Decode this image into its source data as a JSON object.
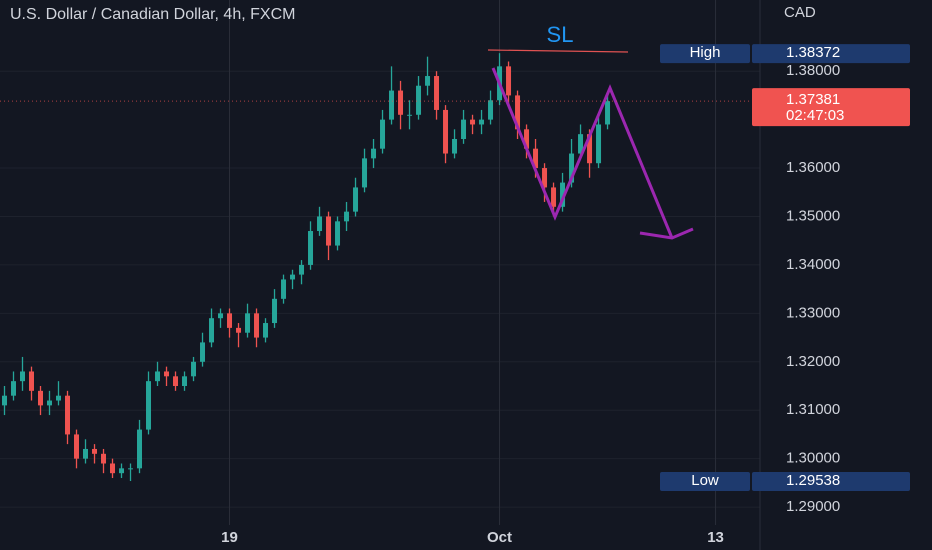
{
  "chart_data": {
    "type": "candlestick",
    "title": "U.S. Dollar / Canadian Dollar, 4h, FXCM",
    "y_axis_title": "CAD",
    "annotation": "SL",
    "up_color": "#26a69a",
    "down_color": "#ef5350",
    "grid": true,
    "ylim": [
      1.2863,
      1.3947
    ],
    "yticks": [
      {
        "value": 1.29,
        "label": "1.29000"
      },
      {
        "value": 1.3,
        "label": "1.30000"
      },
      {
        "value": 1.31,
        "label": "1.31000"
      },
      {
        "value": 1.32,
        "label": "1.32000"
      },
      {
        "value": 1.33,
        "label": "1.33000"
      },
      {
        "value": 1.34,
        "label": "1.34000"
      },
      {
        "value": 1.35,
        "label": "1.35000"
      },
      {
        "value": 1.36,
        "label": "1.36000"
      },
      {
        "value": 1.38,
        "label": "1.38000"
      }
    ],
    "xlim": [
      -0.5,
      83.94
    ],
    "xticks": [
      {
        "value": 25,
        "label": "19"
      },
      {
        "value": 55,
        "label": "Oct"
      },
      {
        "value": 79,
        "label": "13"
      }
    ],
    "high": {
      "label": "High",
      "value": 1.38372
    },
    "low": {
      "label": "Low",
      "value": 1.29538
    },
    "last_price": 1.37381,
    "countdown": "02:47:03",
    "ohlc": [
      [
        1.311,
        1.315,
        1.309,
        1.313
      ],
      [
        1.313,
        1.318,
        1.312,
        1.316
      ],
      [
        1.316,
        1.321,
        1.314,
        1.318
      ],
      [
        1.318,
        1.319,
        1.312,
        1.314
      ],
      [
        1.314,
        1.315,
        1.309,
        1.311
      ],
      [
        1.311,
        1.314,
        1.309,
        1.312
      ],
      [
        1.312,
        1.316,
        1.311,
        1.313
      ],
      [
        1.313,
        1.314,
        1.303,
        1.305
      ],
      [
        1.305,
        1.306,
        1.298,
        1.3
      ],
      [
        1.3,
        1.304,
        1.299,
        1.302
      ],
      [
        1.302,
        1.303,
        1.299,
        1.301
      ],
      [
        1.301,
        1.302,
        1.297,
        1.299
      ],
      [
        1.299,
        1.3,
        1.296,
        1.297
      ],
      [
        1.297,
        1.299,
        1.296,
        1.298
      ],
      [
        1.298,
        1.299,
        1.29538,
        1.298
      ],
      [
        1.298,
        1.308,
        1.297,
        1.306
      ],
      [
        1.306,
        1.318,
        1.305,
        1.316
      ],
      [
        1.316,
        1.32,
        1.315,
        1.318
      ],
      [
        1.318,
        1.319,
        1.315,
        1.317
      ],
      [
        1.317,
        1.318,
        1.314,
        1.315
      ],
      [
        1.315,
        1.318,
        1.314,
        1.317
      ],
      [
        1.317,
        1.321,
        1.316,
        1.32
      ],
      [
        1.32,
        1.326,
        1.319,
        1.324
      ],
      [
        1.324,
        1.331,
        1.323,
        1.329
      ],
      [
        1.329,
        1.331,
        1.327,
        1.33
      ],
      [
        1.33,
        1.331,
        1.325,
        1.327
      ],
      [
        1.327,
        1.328,
        1.323,
        1.326
      ],
      [
        1.326,
        1.332,
        1.325,
        1.33
      ],
      [
        1.33,
        1.331,
        1.323,
        1.325
      ],
      [
        1.325,
        1.329,
        1.324,
        1.328
      ],
      [
        1.328,
        1.335,
        1.327,
        1.333
      ],
      [
        1.333,
        1.338,
        1.332,
        1.337
      ],
      [
        1.337,
        1.339,
        1.335,
        1.338
      ],
      [
        1.338,
        1.341,
        1.336,
        1.34
      ],
      [
        1.34,
        1.349,
        1.339,
        1.347
      ],
      [
        1.347,
        1.352,
        1.346,
        1.35
      ],
      [
        1.35,
        1.351,
        1.341,
        1.344
      ],
      [
        1.344,
        1.35,
        1.343,
        1.349
      ],
      [
        1.349,
        1.353,
        1.347,
        1.351
      ],
      [
        1.351,
        1.358,
        1.35,
        1.356
      ],
      [
        1.356,
        1.364,
        1.355,
        1.362
      ],
      [
        1.362,
        1.366,
        1.36,
        1.364
      ],
      [
        1.364,
        1.372,
        1.363,
        1.37
      ],
      [
        1.37,
        1.381,
        1.369,
        1.376
      ],
      [
        1.376,
        1.378,
        1.368,
        1.371
      ],
      [
        1.371,
        1.374,
        1.368,
        1.371
      ],
      [
        1.371,
        1.379,
        1.37,
        1.377
      ],
      [
        1.377,
        1.383,
        1.375,
        1.379
      ],
      [
        1.379,
        1.38,
        1.37,
        1.372
      ],
      [
        1.372,
        1.373,
        1.361,
        1.363
      ],
      [
        1.363,
        1.368,
        1.362,
        1.366
      ],
      [
        1.366,
        1.372,
        1.365,
        1.37
      ],
      [
        1.37,
        1.371,
        1.367,
        1.369
      ],
      [
        1.369,
        1.372,
        1.367,
        1.37
      ],
      [
        1.37,
        1.376,
        1.369,
        1.374
      ],
      [
        1.374,
        1.38372,
        1.373,
        1.381
      ],
      [
        1.381,
        1.382,
        1.373,
        1.375
      ],
      [
        1.375,
        1.376,
        1.366,
        1.368
      ],
      [
        1.368,
        1.369,
        1.362,
        1.364
      ],
      [
        1.364,
        1.366,
        1.358,
        1.36
      ],
      [
        1.36,
        1.361,
        1.353,
        1.356
      ],
      [
        1.356,
        1.357,
        1.35,
        1.352
      ],
      [
        1.352,
        1.359,
        1.351,
        1.357
      ],
      [
        1.357,
        1.366,
        1.356,
        1.363
      ],
      [
        1.363,
        1.369,
        1.362,
        1.367
      ],
      [
        1.367,
        1.368,
        1.358,
        1.361
      ],
      [
        1.361,
        1.371,
        1.36,
        1.369
      ],
      [
        1.369,
        1.375,
        1.368,
        1.37381
      ]
    ]
  }
}
